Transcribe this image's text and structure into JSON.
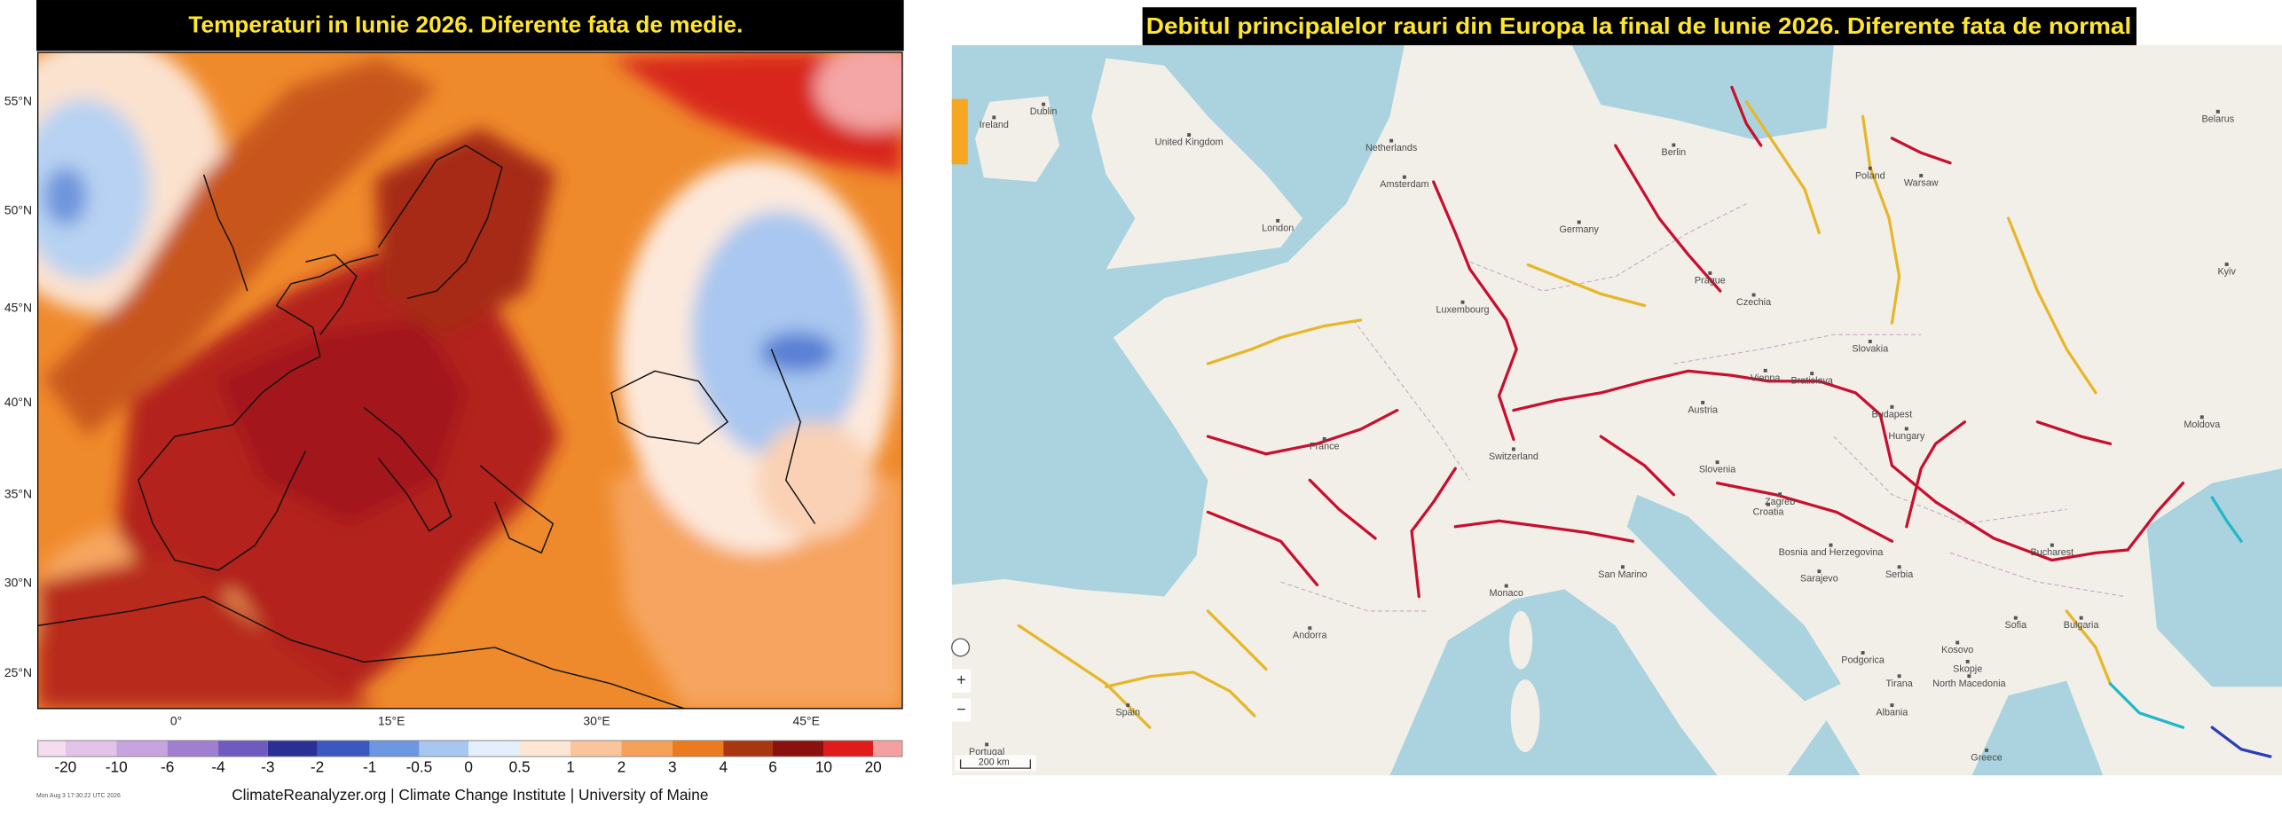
{
  "left_panel": {
    "title": "Temperaturi in Iunie 2026. Diferente fata de medie.",
    "latitude_labels": [
      "55°N",
      "50°N",
      "45°N",
      "40°N",
      "35°N",
      "30°N",
      "25°N"
    ],
    "longitude_labels": [
      "0°",
      "15°E",
      "30°E",
      "45°E"
    ],
    "colorbar_labels": [
      "-20",
      "-10",
      "-6",
      "-4",
      "-3",
      "-2",
      "-1",
      "-0.5",
      "0",
      "0.5",
      "1",
      "2",
      "3",
      "4",
      "6",
      "10",
      "20"
    ],
    "footer": "ClimateReanalyzer.org | Climate Change Institute | University of Maine",
    "timestamp": "Mon Aug  3 17:30:22 UTC 2026"
  },
  "right_panel": {
    "title": "Debitul principalelor rauri din Europa la final de Iunie 2026. Diferente fata de normal",
    "place_labels": [
      "Ireland",
      "Dublin",
      "United Kingdom",
      "London",
      "Netherlands",
      "Amsterdam",
      "Berlin",
      "Germany",
      "Poland",
      "Warsaw",
      "Belarus",
      "Kyiv",
      "France",
      "Luxembourg",
      "Prague",
      "Czechia",
      "Slovakia",
      "Vienna",
      "Bratislava",
      "Budapest",
      "Hungary",
      "Austria",
      "Switzerland",
      "Slovenia",
      "Zagreb",
      "Croatia",
      "Bosnia and Herzegovina",
      "Sarajevo",
      "Serbia",
      "Moldova",
      "Bucharest",
      "Sofia",
      "Bulgaria",
      "San Marino",
      "Monaco",
      "Andorra",
      "Spain",
      "Portugal",
      "Podgorica",
      "Kosovo",
      "Skopje",
      "North Macedonia",
      "Tirana",
      "Albania",
      "Greece"
    ],
    "scale_bar": "200 km",
    "zoom_in": "+",
    "zoom_out": "−"
  }
}
